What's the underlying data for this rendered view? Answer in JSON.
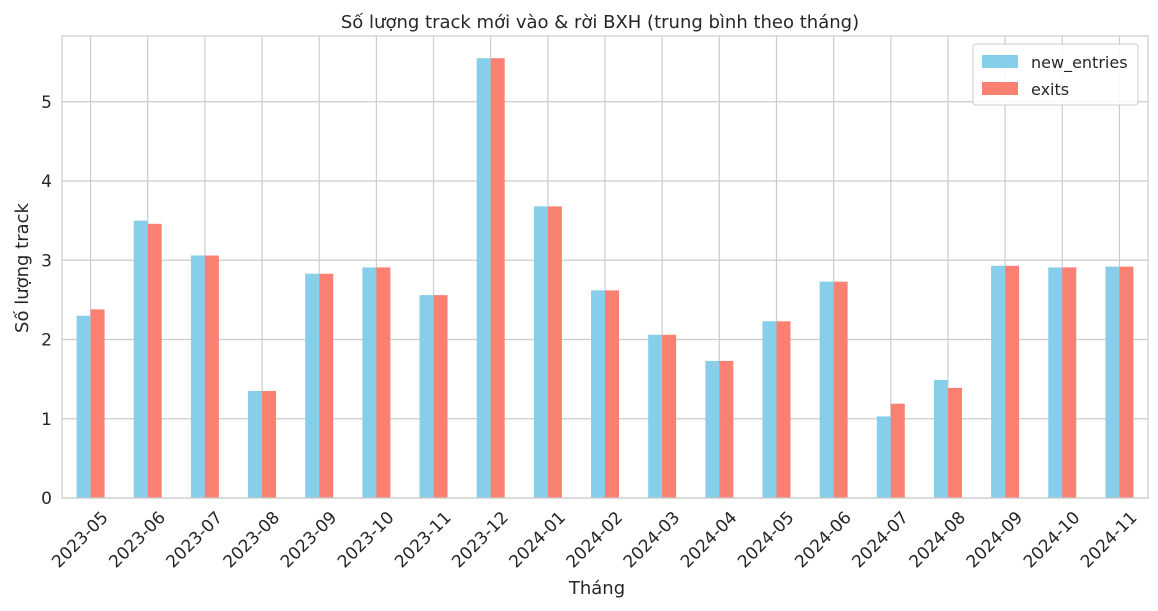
{
  "chart_data": {
    "type": "bar",
    "title": "Số lượng track mới vào & rời BXH (trung bình theo tháng)",
    "xlabel": "Tháng",
    "ylabel": "Số lượng track",
    "categories": [
      "2023-05",
      "2023-06",
      "2023-07",
      "2023-08",
      "2023-09",
      "2023-10",
      "2023-11",
      "2023-12",
      "2024-01",
      "2024-02",
      "2024-03",
      "2024-04",
      "2024-05",
      "2024-06",
      "2024-07",
      "2024-08",
      "2024-09",
      "2024-10",
      "2024-11"
    ],
    "series": [
      {
        "name": "new_entries",
        "color": "#87ceeb",
        "values": [
          2.3,
          3.5,
          3.06,
          1.35,
          2.83,
          2.91,
          2.56,
          5.55,
          3.68,
          2.62,
          2.06,
          1.73,
          2.23,
          2.73,
          1.03,
          1.49,
          2.93,
          2.91,
          2.92
        ]
      },
      {
        "name": "exits",
        "color": "#fa8072",
        "values": [
          2.38,
          3.46,
          3.06,
          1.35,
          2.83,
          2.91,
          2.56,
          5.55,
          3.68,
          2.62,
          2.06,
          1.73,
          2.23,
          2.73,
          1.19,
          1.39,
          2.93,
          2.91,
          2.92
        ]
      }
    ],
    "ylim": [
      0,
      5.83
    ],
    "yticks": [
      0,
      1,
      2,
      3,
      4,
      5
    ],
    "grid": true,
    "legend_position": "top-right"
  }
}
